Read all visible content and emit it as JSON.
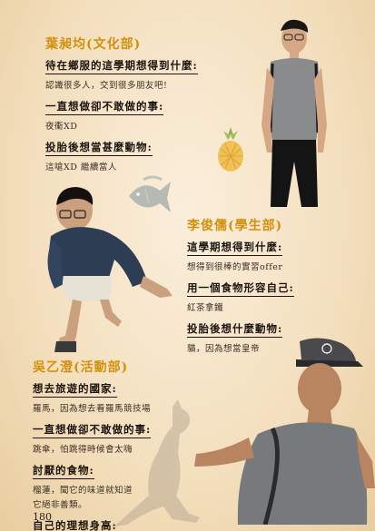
{
  "profiles": [
    {
      "name": "葉昶均(文化部)",
      "qa": [
        {
          "q": "待在鄉服的這學期想得到什麼:",
          "a": "認識很多人，交到很多朋友吧!"
        },
        {
          "q": "一直想做卻不敢做的事:",
          "a": "夜衝XD"
        },
        {
          "q": "投胎後想當甚麼動物:",
          "a": "這嗆XD 繼續當人"
        }
      ]
    },
    {
      "name": "李俊儒(學生部)",
      "qa": [
        {
          "q": "這學期想得到什麼:",
          "a": "想得到很棒的實習offer"
        },
        {
          "q": "用一個食物形容自己:",
          "a": "紅茶拿鐵"
        },
        {
          "q": "投胎後想什麼動物:",
          "a": "貓，因為想當皇帝"
        }
      ]
    },
    {
      "name": "吳乙澄(活動部)",
      "qa": [
        {
          "q": "想去旅遊的國家:",
          "a": "羅馬，因為想去看羅馬競技場"
        },
        {
          "q": "一直想做卻不敢做的事:",
          "a": "跳傘，怕跳得時候會太嗨"
        },
        {
          "q": "討厭的食物:",
          "a": "榴蓮，聞它的味道就知道",
          "a2": "它絕非善類。"
        },
        {
          "q": "自己的理想身高:",
          "a": ""
        }
      ]
    }
  ],
  "page_number": "180",
  "icons": [
    "pineapple-icon",
    "fish-icon",
    "kangaroo-icon"
  ],
  "colors": {
    "name": "#d4900c",
    "text": "#1c1410",
    "paper": "#f3dfbd"
  }
}
